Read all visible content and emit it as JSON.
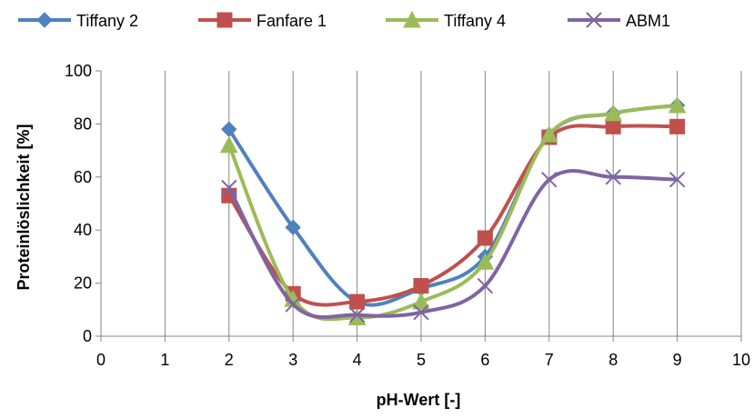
{
  "chart_data": {
    "type": "line",
    "xlabel": "pH-Wert [-]",
    "ylabel": "Proteinlöslichkeit [%]",
    "xlim": [
      0,
      10
    ],
    "ylim": [
      0,
      100
    ],
    "x_ticks": [
      0,
      1,
      2,
      3,
      4,
      5,
      6,
      7,
      8,
      9,
      10
    ],
    "y_ticks": [
      0,
      20,
      40,
      60,
      80,
      100
    ],
    "grid": "vertical",
    "legend": "top",
    "smooth": true,
    "series": [
      {
        "name": "Tiffany 2",
        "color": "#4F81BD",
        "marker": "diamond",
        "x": [
          2,
          3,
          4,
          5,
          6,
          7,
          8,
          9
        ],
        "y": [
          78,
          41,
          13,
          18,
          30,
          76,
          84,
          87
        ]
      },
      {
        "name": "Fanfare 1",
        "color": "#C0504D",
        "marker": "square",
        "x": [
          2,
          3,
          4,
          5,
          6,
          7,
          8,
          9
        ],
        "y": [
          53,
          16,
          13,
          19,
          37,
          75,
          79,
          79
        ]
      },
      {
        "name": "Tiffany 4",
        "color": "#9BBB59",
        "marker": "triangle",
        "x": [
          2,
          3,
          4,
          5,
          6,
          7,
          8,
          9
        ],
        "y": [
          72,
          14,
          7,
          13,
          28,
          76,
          84,
          87
        ]
      },
      {
        "name": "ABM1",
        "color": "#8064A2",
        "marker": "x",
        "x": [
          2,
          3,
          4,
          5,
          6,
          7,
          8,
          9
        ],
        "y": [
          56,
          12,
          8,
          9,
          19,
          59,
          60,
          59
        ]
      }
    ]
  }
}
